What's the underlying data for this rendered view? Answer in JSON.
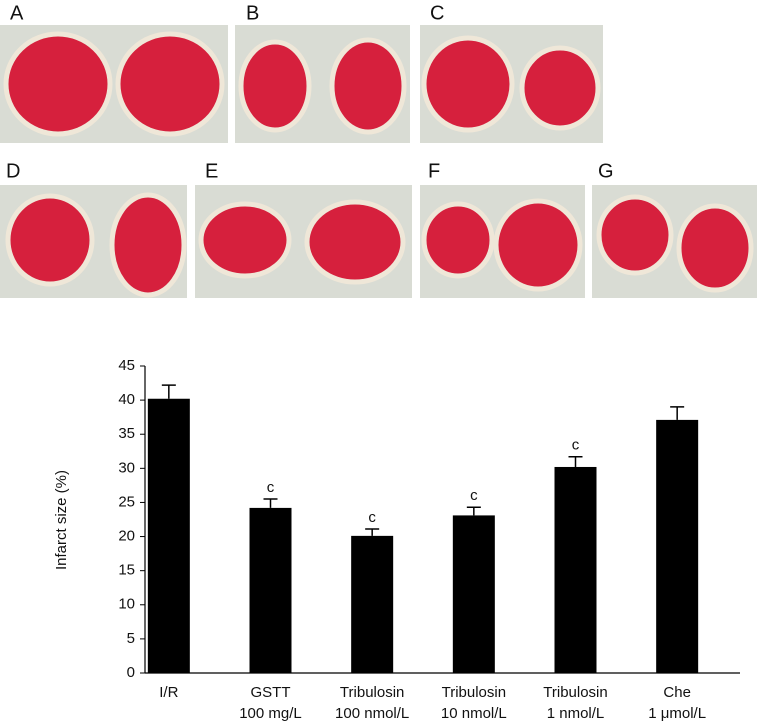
{
  "panels": [
    "A",
    "B",
    "C",
    "D",
    "E",
    "F",
    "G"
  ],
  "chart_data": {
    "type": "bar",
    "y_label": "Infarct size (%)",
    "categories": [
      [
        "I/R"
      ],
      [
        "GSTT",
        "100 mg/L"
      ],
      [
        "Tribulosin",
        "100 nmol/L"
      ],
      [
        "Tribulosin",
        "10 nmol/L"
      ],
      [
        "Tribulosin",
        "1 nmol/L"
      ],
      [
        "Che",
        "1 μmol/L"
      ]
    ],
    "values": [
      40.2,
      24.2,
      20.1,
      23.1,
      30.2,
      37.1
    ],
    "errors": [
      2.0,
      1.3,
      1.0,
      1.2,
      1.5,
      1.9
    ],
    "value_annotations": [
      null,
      "c",
      "c",
      "c",
      "c",
      null
    ],
    "color": "#000000",
    "ylim": [
      0,
      45
    ],
    "yticks": [
      0,
      5,
      10,
      15,
      20,
      25,
      30,
      35,
      40,
      45
    ]
  }
}
